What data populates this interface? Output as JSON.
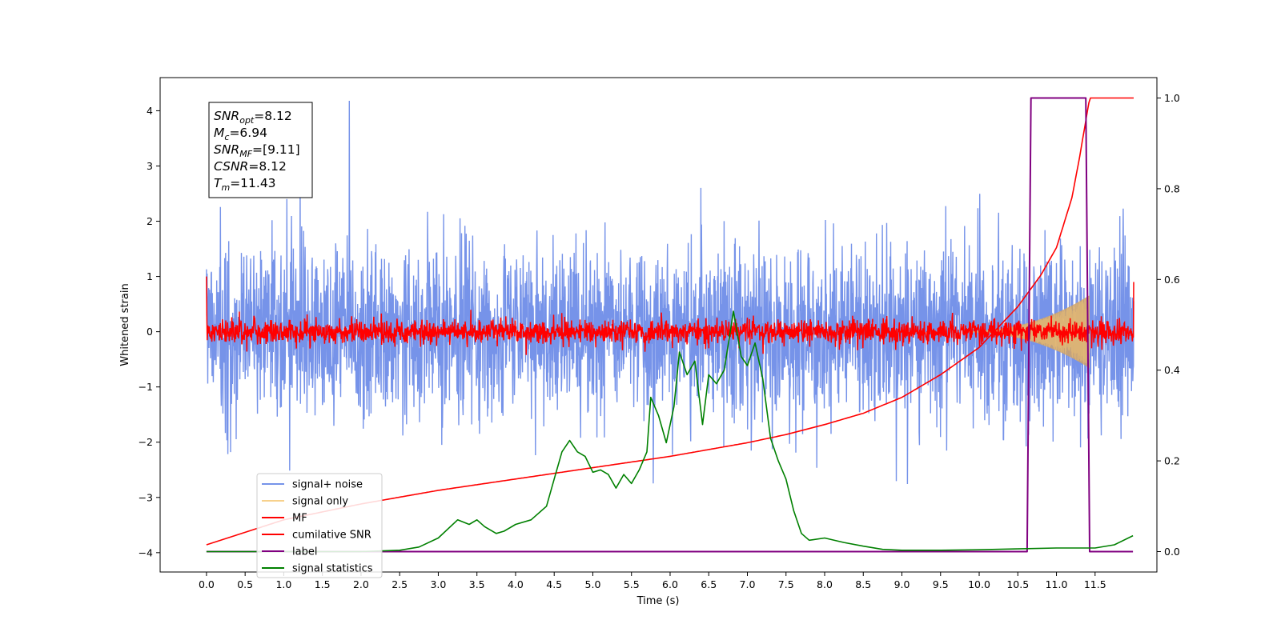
{
  "chart_data": {
    "type": "line",
    "xlabel": "Time (s)",
    "ylabel": "Whitened strain",
    "xlim": [
      -0.6,
      12.3
    ],
    "ylim": [
      -4.35,
      4.6
    ],
    "y2lim": [
      -0.045,
      1.045
    ],
    "x_ticks": [
      "0.0",
      "0.5",
      "1.0",
      "1.5",
      "2.0",
      "2.5",
      "3.0",
      "3.5",
      "4.0",
      "4.5",
      "5.0",
      "5.5",
      "6.0",
      "6.5",
      "7.0",
      "7.5",
      "8.0",
      "8.5",
      "9.0",
      "9.5",
      "10.0",
      "10.5",
      "11.0",
      "11.5"
    ],
    "y_ticks": [
      "4",
      "3",
      "2",
      "1",
      "0",
      "−1",
      "−2",
      "−3",
      "−4"
    ],
    "y2_ticks": [
      "1.0",
      "0.8",
      "0.6",
      "0.4",
      "0.2",
      "0.0"
    ],
    "grid": false,
    "legend_position": "lower-left",
    "annotation": {
      "lines": [
        {
          "var": "SNR",
          "sub": "opt",
          "value": "=8.12"
        },
        {
          "var": "M",
          "sub": "c",
          "value": "=6.94"
        },
        {
          "var": "SNR",
          "sub": "MF",
          "value": "=[9.11]"
        },
        {
          "var": "CSNR",
          "sub": "",
          "value": "=8.12"
        },
        {
          "var": "T",
          "sub": "m",
          "value": "=11.43"
        }
      ]
    },
    "series": [
      {
        "name": "signal+ noise",
        "axis": "left",
        "color": "#4169e1",
        "kind": "noise",
        "duration": 12.0,
        "envelope_rms": 0.78,
        "peak_max": 4.18,
        "trough_min": -3.5
      },
      {
        "name": "signal only",
        "axis": "left",
        "color": "#f5c66f",
        "kind": "chirp",
        "start": 9.8,
        "end": 11.43,
        "max_amplitude": 0.65
      },
      {
        "name": "MF",
        "axis": "left",
        "color": "#ff0000",
        "kind": "noise",
        "duration": 12.0,
        "envelope_rms": 0.1,
        "start_value": 1.0,
        "end_value": 0.9
      },
      {
        "name": "cumilative SNR",
        "axis": "right",
        "color": "#ff0000",
        "x": [
          0.0,
          1.0,
          2.0,
          3.0,
          4.0,
          5.0,
          6.0,
          6.5,
          7.0,
          7.5,
          8.0,
          8.5,
          9.0,
          9.5,
          10.0,
          10.5,
          10.8,
          11.0,
          11.2,
          11.3,
          11.43,
          12.0
        ],
        "y": [
          0.015,
          0.07,
          0.105,
          0.135,
          0.16,
          0.185,
          0.21,
          0.225,
          0.24,
          0.258,
          0.28,
          0.305,
          0.34,
          0.39,
          0.45,
          0.54,
          0.61,
          0.67,
          0.78,
          0.87,
          1.0,
          1.0
        ]
      },
      {
        "name": "label",
        "axis": "right",
        "color": "#800080",
        "x": [
          0.0,
          10.62,
          10.67,
          11.38,
          11.43,
          11.99
        ],
        "y": [
          0.0,
          0.0,
          1.0,
          1.0,
          0.0,
          0.0
        ]
      },
      {
        "name": "signal statistics",
        "axis": "right",
        "color": "#008000",
        "x": [
          0.0,
          0.5,
          1.0,
          1.5,
          2.0,
          2.5,
          2.75,
          3.0,
          3.25,
          3.4,
          3.5,
          3.6,
          3.75,
          3.85,
          4.0,
          4.2,
          4.4,
          4.5,
          4.6,
          4.7,
          4.8,
          4.9,
          5.0,
          5.1,
          5.2,
          5.3,
          5.4,
          5.5,
          5.6,
          5.7,
          5.75,
          5.85,
          5.95,
          6.05,
          6.12,
          6.22,
          6.32,
          6.42,
          6.5,
          6.6,
          6.7,
          6.82,
          6.92,
          7.0,
          7.1,
          7.2,
          7.3,
          7.4,
          7.5,
          7.6,
          7.7,
          7.8,
          8.0,
          8.25,
          8.5,
          8.75,
          9.0,
          9.5,
          10.0,
          10.5,
          11.0,
          11.5,
          11.75,
          11.99
        ],
        "y": [
          0.0,
          0.0,
          0.0,
          0.0,
          0.0,
          0.003,
          0.01,
          0.03,
          0.07,
          0.06,
          0.07,
          0.055,
          0.04,
          0.045,
          0.06,
          0.07,
          0.1,
          0.16,
          0.22,
          0.245,
          0.22,
          0.21,
          0.175,
          0.18,
          0.17,
          0.14,
          0.17,
          0.15,
          0.18,
          0.22,
          0.34,
          0.3,
          0.24,
          0.32,
          0.44,
          0.39,
          0.42,
          0.28,
          0.39,
          0.37,
          0.4,
          0.53,
          0.43,
          0.41,
          0.46,
          0.38,
          0.25,
          0.2,
          0.16,
          0.09,
          0.04,
          0.025,
          0.03,
          0.02,
          0.012,
          0.005,
          0.003,
          0.003,
          0.004,
          0.006,
          0.008,
          0.008,
          0.015,
          0.035
        ]
      }
    ]
  }
}
